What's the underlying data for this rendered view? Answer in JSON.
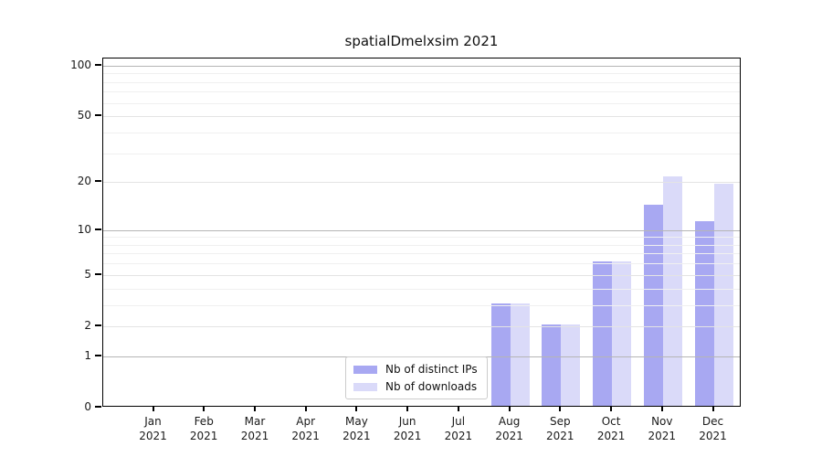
{
  "title": "spatialDmelxsim 2021",
  "colors": {
    "ips_bar": "#a8a8f2",
    "downloads_bar": "#dadaf9",
    "grid_decade": "#b5b5b5",
    "grid_labeled": "#e4e4e4",
    "grid_minor": "#f0f0f0",
    "axis": "#000000"
  },
  "legend": {
    "items": [
      {
        "label": "Nb of distinct IPs",
        "series": "ips"
      },
      {
        "label": "Nb of downloads",
        "series": "downloads"
      }
    ]
  },
  "chart_data": {
    "type": "bar",
    "title": "spatialDmelxsim 2021",
    "categories": [
      "Jan 2021",
      "Feb 2021",
      "Mar 2021",
      "Apr 2021",
      "May 2021",
      "Jun 2021",
      "Jul 2021",
      "Aug 2021",
      "Sep 2021",
      "Oct 2021",
      "Nov 2021",
      "Dec 2021"
    ],
    "series": [
      {
        "name": "Nb of distinct IPs",
        "values": [
          0,
          0,
          0,
          0,
          0,
          0,
          0,
          3,
          2,
          6,
          14,
          11
        ],
        "color": "#a8a8f2"
      },
      {
        "name": "Nb of downloads",
        "values": [
          0,
          0,
          0,
          0,
          0,
          0,
          0,
          3,
          2,
          6,
          21,
          19
        ],
        "color": "#dadaf9"
      }
    ],
    "yscale": "log1p",
    "ylim": [
      0,
      110
    ],
    "yticks": [
      0,
      1,
      2,
      5,
      10,
      20,
      50,
      100
    ],
    "decade_ticks": [
      1,
      10,
      100
    ],
    "minor_yticks": [
      3,
      4,
      6,
      7,
      8,
      9,
      30,
      40,
      60,
      70,
      80,
      90
    ],
    "xlabel": "",
    "ylabel": "",
    "grid": true,
    "legend_position": "lower center-left"
  }
}
